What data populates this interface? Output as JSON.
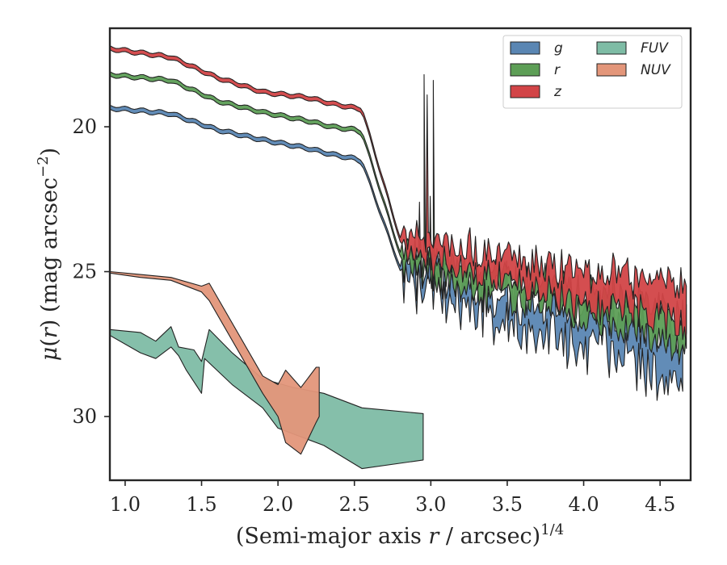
{
  "chart_data": {
    "type": "area",
    "title": "",
    "xlabel": "(Semi-major axis r / arcsec)^1/4",
    "xlabel_parts": {
      "prefix": "(Semi-major axis ",
      "var": "r",
      "mid": " / arcsec)",
      "sup": "1/4"
    },
    "ylabel": "μ(r) (mag arcsec^-2)",
    "ylabel_parts": {
      "mu": "μ",
      "open": "(",
      "var": "r",
      "rest": ") (mag arcsec",
      "sup": "−2",
      "close": ")"
    },
    "xlim": [
      0.9,
      4.7
    ],
    "ylim": [
      32.2,
      16.6
    ],
    "y_inverted": true,
    "grid": false,
    "legend_position": "top-right",
    "legend_columns": 2,
    "xticks": [
      1.0,
      1.5,
      2.0,
      2.5,
      3.0,
      3.5,
      4.0,
      4.5
    ],
    "xtick_labels": [
      "1.0",
      "1.5",
      "2.0",
      "2.5",
      "3.0",
      "3.5",
      "4.0",
      "4.5"
    ],
    "yticks": [
      20,
      25,
      30
    ],
    "ytick_labels": [
      "20",
      "25",
      "30"
    ],
    "series": [
      {
        "name": "g",
        "color": "#5a86b3",
        "mode": "smooth",
        "knots": [
          [
            0.9,
            19.35
          ],
          [
            1.3,
            19.55
          ],
          [
            1.6,
            20.1
          ],
          [
            1.9,
            20.45
          ],
          [
            2.2,
            20.75
          ],
          [
            2.35,
            20.95
          ],
          [
            2.5,
            21.1
          ],
          [
            2.55,
            21.2
          ],
          [
            2.8,
            24.9
          ]
        ],
        "noise": {
          "x0": 2.8,
          "x1": 4.65,
          "y0": 25.2,
          "y1": 27.9,
          "amp": 0.9,
          "width0": 0.25,
          "width1": 0.9,
          "seed": 11,
          "spikes": [
            [
              2.93,
              22.6
            ],
            [
              3.0,
              22.4
            ]
          ]
        }
      },
      {
        "name": "r",
        "color": "#5d9e56",
        "mode": "smooth",
        "knots": [
          [
            0.9,
            18.2
          ],
          [
            1.3,
            18.4
          ],
          [
            1.6,
            19.1
          ],
          [
            1.9,
            19.5
          ],
          [
            2.2,
            19.8
          ],
          [
            2.35,
            20.0
          ],
          [
            2.5,
            20.1
          ],
          [
            2.55,
            20.2
          ],
          [
            2.8,
            24.4
          ]
        ],
        "noise": {
          "x0": 2.8,
          "x1": 4.68,
          "y0": 24.6,
          "y1": 27.0,
          "amp": 0.6,
          "width0": 0.25,
          "width1": 0.7,
          "seed": 23,
          "spikes": [
            [
              2.96,
              18.2
            ],
            [
              3.02,
              18.4
            ]
          ]
        }
      },
      {
        "name": "z",
        "color": "#d24447",
        "mode": "smooth",
        "knots": [
          [
            0.9,
            17.3
          ],
          [
            1.3,
            17.6
          ],
          [
            1.6,
            18.3
          ],
          [
            1.9,
            18.8
          ],
          [
            2.2,
            19.0
          ],
          [
            2.35,
            19.2
          ],
          [
            2.5,
            19.35
          ],
          [
            2.55,
            19.4
          ],
          [
            2.8,
            23.9
          ]
        ],
        "noise": {
          "x0": 2.8,
          "x1": 4.68,
          "y0": 24.1,
          "y1": 26.3,
          "amp": 0.55,
          "width0": 0.25,
          "width1": 0.8,
          "seed": 37,
          "spikes": [
            [
              2.98,
              18.9
            ]
          ]
        }
      },
      {
        "name": "FUV",
        "color": "#7ebca5",
        "mode": "band",
        "upper": [
          [
            0.9,
            27.0
          ],
          [
            1.1,
            27.1
          ],
          [
            1.2,
            27.4
          ],
          [
            1.3,
            26.9
          ],
          [
            1.35,
            27.6
          ],
          [
            1.45,
            27.7
          ],
          [
            1.5,
            28.1
          ],
          [
            1.55,
            27.0
          ],
          [
            1.7,
            27.8
          ],
          [
            1.9,
            28.7
          ],
          [
            2.1,
            29.0
          ],
          [
            2.3,
            29.2
          ],
          [
            2.55,
            29.7
          ],
          [
            2.95,
            29.9
          ]
        ],
        "lower": [
          [
            0.9,
            27.2
          ],
          [
            1.1,
            27.8
          ],
          [
            1.2,
            28.0
          ],
          [
            1.3,
            27.6
          ],
          [
            1.35,
            27.9
          ],
          [
            1.4,
            28.4
          ],
          [
            1.5,
            29.2
          ],
          [
            1.52,
            28.0
          ],
          [
            1.7,
            28.9
          ],
          [
            1.9,
            29.7
          ],
          [
            2.0,
            30.4
          ],
          [
            2.1,
            30.6
          ],
          [
            2.3,
            31.0
          ],
          [
            2.55,
            31.8
          ],
          [
            2.95,
            31.5
          ]
        ]
      },
      {
        "name": "NUV",
        "color": "#e3967a",
        "mode": "band",
        "upper": [
          [
            0.9,
            25.0
          ],
          [
            1.1,
            25.1
          ],
          [
            1.3,
            25.2
          ],
          [
            1.5,
            25.5
          ],
          [
            1.55,
            25.4
          ],
          [
            1.9,
            28.6
          ],
          [
            2.0,
            28.9
          ],
          [
            2.05,
            28.4
          ],
          [
            2.15,
            29.0
          ],
          [
            2.25,
            28.3
          ],
          [
            2.27,
            28.3
          ]
        ],
        "lower": [
          [
            0.9,
            25.05
          ],
          [
            1.1,
            25.2
          ],
          [
            1.3,
            25.3
          ],
          [
            1.5,
            25.7
          ],
          [
            1.55,
            26.0
          ],
          [
            1.9,
            29.2
          ],
          [
            2.0,
            30.0
          ],
          [
            2.05,
            30.9
          ],
          [
            2.15,
            31.3
          ],
          [
            2.25,
            30.2
          ],
          [
            2.27,
            30.0
          ]
        ]
      }
    ],
    "draw_order": [
      "FUV",
      "NUV",
      "g",
      "r",
      "z"
    ],
    "legend_order": [
      "g",
      "r",
      "z",
      "FUV",
      "NUV"
    ]
  }
}
